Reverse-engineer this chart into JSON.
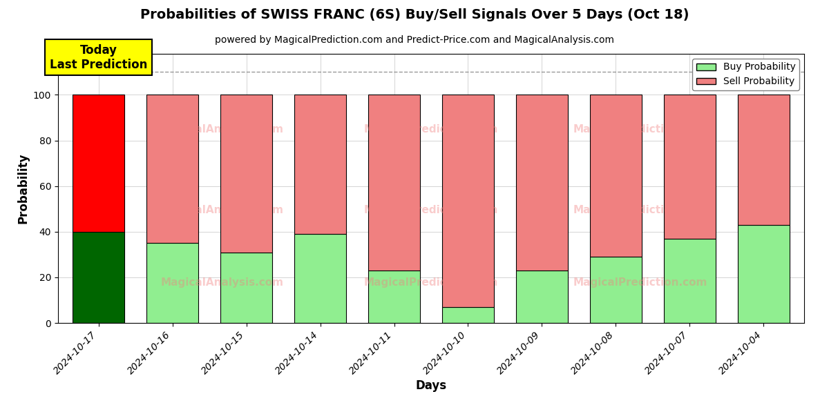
{
  "title": "Probabilities of SWISS FRANC (6S) Buy/Sell Signals Over 5 Days (Oct 18)",
  "subtitle": "powered by MagicalPrediction.com and Predict-Price.com and MagicalAnalysis.com",
  "xlabel": "Days",
  "ylabel": "Probability",
  "dates": [
    "2024-10-17",
    "2024-10-16",
    "2024-10-15",
    "2024-10-14",
    "2024-10-11",
    "2024-10-10",
    "2024-10-09",
    "2024-10-08",
    "2024-10-07",
    "2024-10-04"
  ],
  "buy_probs": [
    40,
    35,
    31,
    39,
    23,
    7,
    23,
    29,
    37,
    43
  ],
  "sell_probs": [
    60,
    65,
    69,
    61,
    77,
    93,
    77,
    71,
    63,
    57
  ],
  "buy_color_today": "#006600",
  "sell_color_today": "#ff0000",
  "buy_color_rest": "#90ee90",
  "sell_color_rest": "#f08080",
  "today_label_line1": "Today",
  "today_label_line2": "Last Prediction",
  "today_label_bg": "#ffff00",
  "dashed_line_y": 110,
  "ylim": [
    0,
    118
  ],
  "yticks": [
    0,
    20,
    40,
    60,
    80,
    100
  ],
  "watermark_color": "#f08080",
  "watermark_alpha": 0.4,
  "legend_buy_label": "Buy Probability",
  "legend_sell_label": "Sell Probability",
  "background_color": "#ffffff",
  "grid_color": "#aaaaaa",
  "bar_edge_color": "#000000",
  "bar_edge_width": 0.8,
  "bar_width": 0.7
}
